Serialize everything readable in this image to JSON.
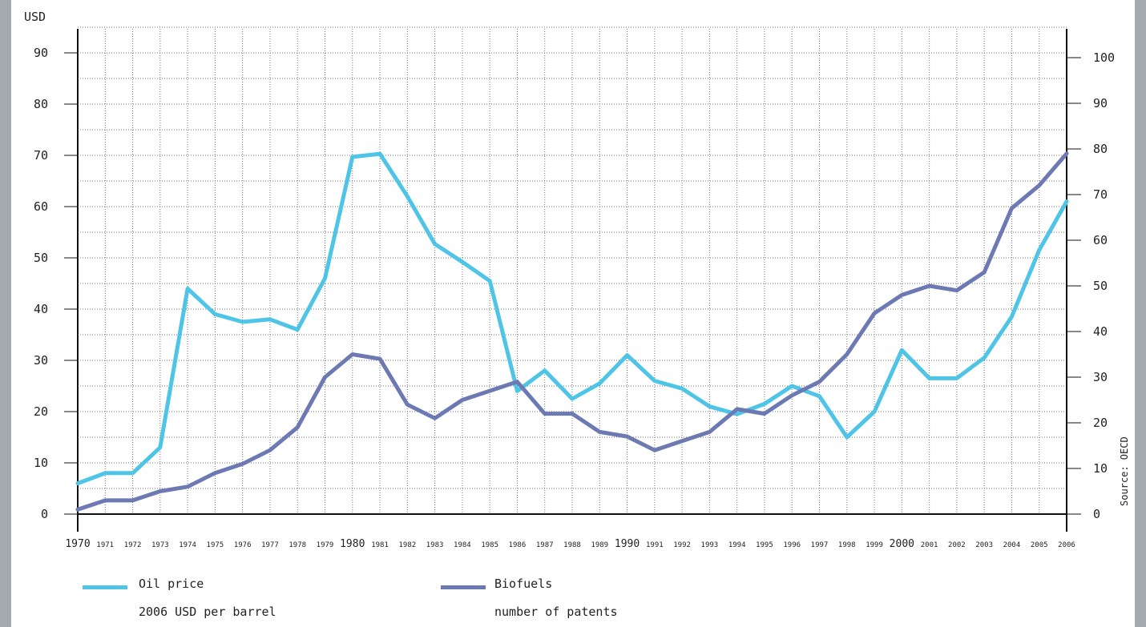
{
  "chart_data": {
    "type": "line",
    "left_axis_unit": "USD",
    "source": "Source: OECD",
    "x": [
      "1970",
      "1971",
      "1972",
      "1973",
      "1974",
      "1975",
      "1976",
      "1977",
      "1978",
      "1979",
      "1980",
      "1981",
      "1982",
      "1983",
      "1984",
      "1985",
      "1986",
      "1987",
      "1988",
      "1989",
      "1990",
      "1991",
      "1992",
      "1993",
      "1994",
      "1995",
      "1996",
      "1997",
      "1998",
      "1999",
      "2000",
      "2001",
      "2002",
      "2003",
      "2004",
      "2005",
      "2006"
    ],
    "x_major": [
      "1970",
      "1980",
      "1990",
      "2000"
    ],
    "ylim_left": [
      0,
      100
    ],
    "yticks_left": [
      "0",
      "10",
      "20",
      "30",
      "40",
      "50",
      "60",
      "70",
      "80",
      "90"
    ],
    "ylim_right": [
      0,
      110
    ],
    "yticks_right": [
      "0",
      "10",
      "20",
      "30",
      "40",
      "50",
      "60",
      "70",
      "80",
      "90",
      "100"
    ],
    "grid": true,
    "series": [
      {
        "name": "Oil price",
        "sublabel": "2006 USD per barrel",
        "axis": "left",
        "color": "#4ec4e6",
        "values": [
          6,
          8,
          8,
          13,
          44,
          39,
          37.5,
          38,
          36,
          46,
          69.7,
          70.3,
          62,
          52.7,
          49.2,
          45.5,
          24,
          28,
          22.5,
          25.5,
          31,
          26,
          24.5,
          21,
          19.5,
          21.5,
          25,
          23,
          15,
          20,
          32,
          26.5,
          26.5,
          30.5,
          38.5,
          51.5,
          61
        ]
      },
      {
        "name": "Biofuels",
        "sublabel": "number of patents",
        "axis": "right",
        "color": "#6d79b2",
        "values": [
          1,
          3,
          3,
          5,
          6,
          9,
          11,
          14,
          19,
          30,
          35,
          34,
          24,
          21,
          25,
          27,
          29,
          22,
          22,
          18,
          17,
          14,
          16,
          18,
          23,
          22,
          26,
          29,
          35,
          44,
          48,
          50,
          49,
          53,
          67,
          72,
          79
        ]
      }
    ]
  }
}
